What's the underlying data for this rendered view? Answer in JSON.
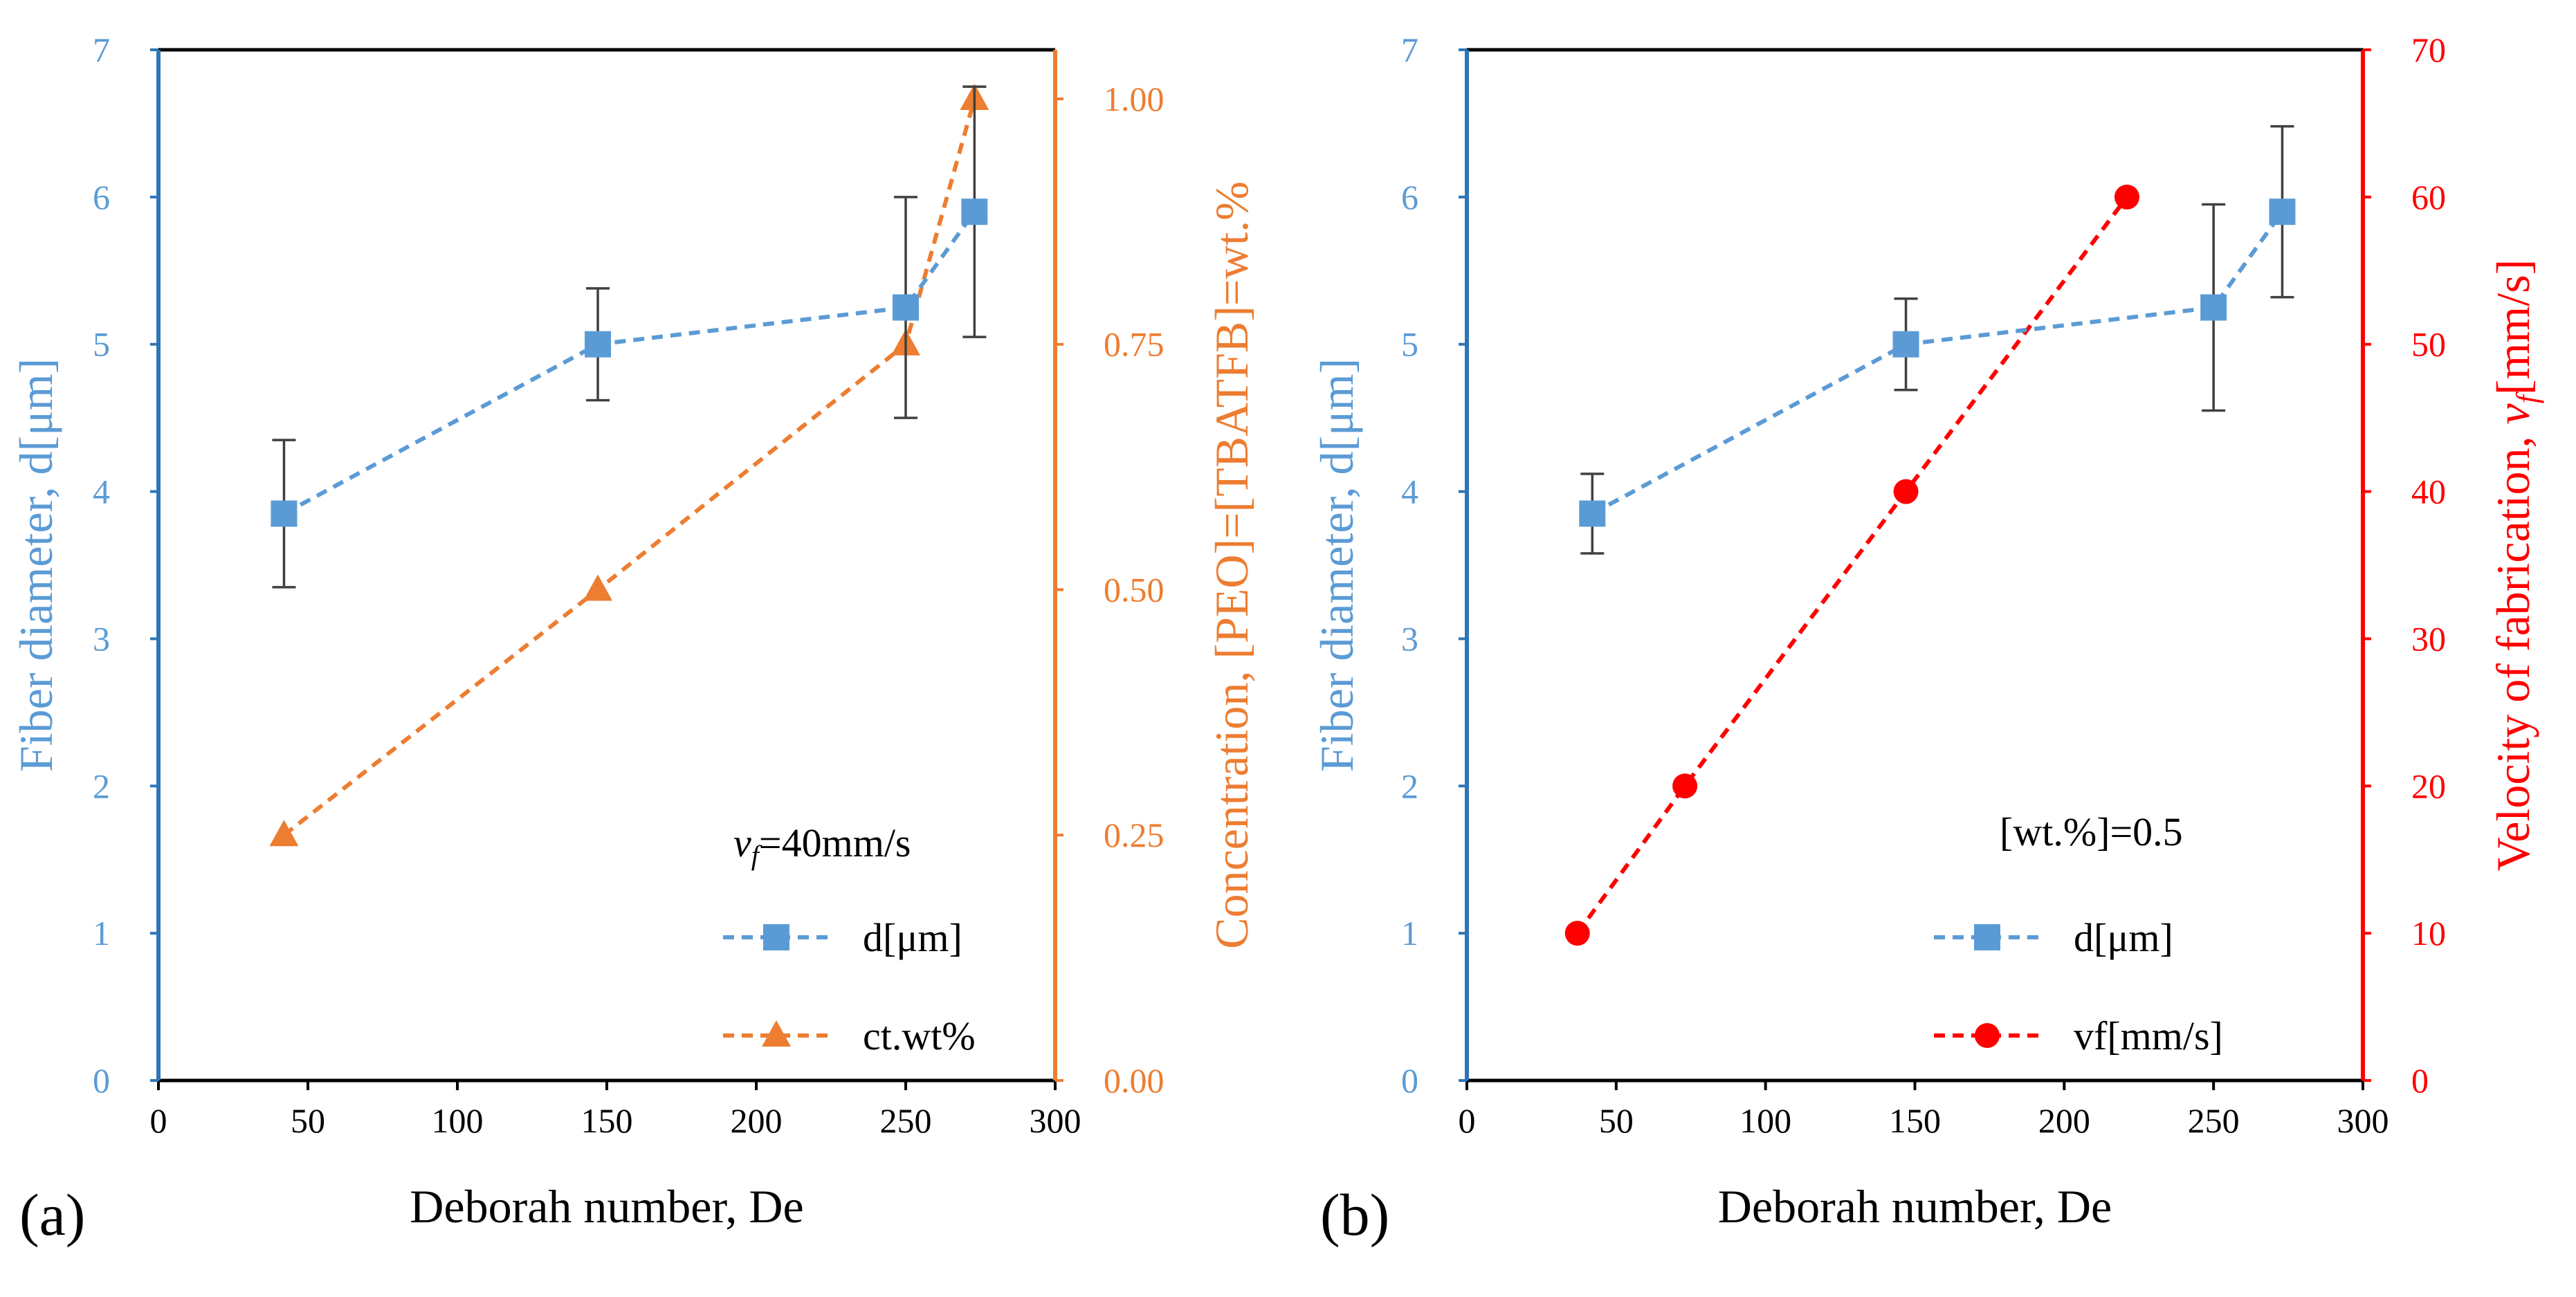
{
  "colors": {
    "blue": "#5b9bd5",
    "orange": "#ed7d31",
    "red": "#ff0000",
    "axis_blue": "#2e75b6",
    "black": "#000000",
    "errorbar": "#404040"
  },
  "chart_data": [
    {
      "type": "line",
      "panel_label": "(a)",
      "xlabel": "Deborah number, De",
      "xlim": [
        0,
        300
      ],
      "xticks": [
        "0",
        "50",
        "100",
        "150",
        "200",
        "250",
        "300"
      ],
      "ylabel_left": "Fiber diameter, d[μm]",
      "ylim_left": [
        0,
        7
      ],
      "yticks_left": [
        "0",
        "1",
        "2",
        "3",
        "4",
        "5",
        "6",
        "7"
      ],
      "ylabel_right": "Concentration, [PEO]=[TBATFB]=wt.%",
      "ylim_right": [
        0,
        1.05
      ],
      "yticks_right": [
        "0.00",
        "0.25",
        "0.50",
        "0.75",
        "1.00"
      ],
      "annotation": {
        "v": "v",
        "sub": "f",
        "rest": "=40mm/s"
      },
      "series": [
        {
          "name": "d[μm]",
          "axis": "left",
          "marker": "square",
          "color": "blue",
          "x": [
            42,
            147,
            250,
            273
          ],
          "y": [
            3.85,
            5.0,
            5.25,
            5.9
          ],
          "err": [
            0.5,
            0.38,
            0.75,
            0.85
          ]
        },
        {
          "name": "ct.wt%",
          "axis": "right",
          "marker": "triangle",
          "color": "orange",
          "x": [
            42,
            147,
            250,
            273
          ],
          "y": [
            0.25,
            0.5,
            0.75,
            1.0
          ]
        }
      ]
    },
    {
      "type": "line",
      "panel_label": "(b)",
      "xlabel": "Deborah number, De",
      "xlim": [
        0,
        300
      ],
      "xticks": [
        "0",
        "50",
        "100",
        "150",
        "200",
        "250",
        "300"
      ],
      "ylabel_left": "Fiber diameter, d[μm]",
      "ylim_left": [
        0,
        7
      ],
      "yticks_left": [
        "0",
        "1",
        "2",
        "3",
        "4",
        "5",
        "6",
        "7"
      ],
      "ylabel_right": {
        "prefix": "Velocity of fabrication, ",
        "v": "v",
        "sub": "f",
        "suffix": "[mm/s]"
      },
      "ylim_right": [
        0,
        70
      ],
      "yticks_right": [
        "0",
        "10",
        "20",
        "30",
        "40",
        "50",
        "60",
        "70"
      ],
      "annotation": {
        "text": "[wt.%]=0.5"
      },
      "series": [
        {
          "name": "d[μm]",
          "axis": "left",
          "marker": "square",
          "color": "blue",
          "x": [
            42,
            147,
            250,
            273
          ],
          "y": [
            3.85,
            5.0,
            5.25,
            5.9
          ],
          "err": [
            0.27,
            0.31,
            0.7,
            0.58
          ]
        },
        {
          "name": "vf[mm/s]",
          "axis": "right",
          "marker": "circle",
          "color": "red",
          "x": [
            37,
            73,
            147,
            221
          ],
          "y": [
            10,
            20,
            40,
            60
          ]
        }
      ]
    }
  ]
}
